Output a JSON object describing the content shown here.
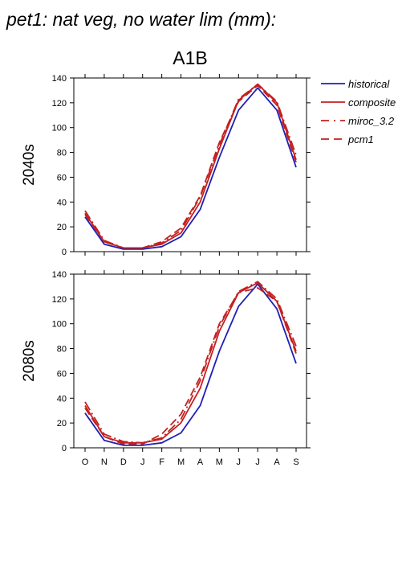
{
  "page": {
    "title": "pet1: nat veg, no water lim (mm):",
    "scenario": "A1B"
  },
  "colors": {
    "historical": "#1f1fb4",
    "composite": "#c42020",
    "miroc_3.2": "#c42020",
    "pcm1": "#c42020"
  },
  "legend": {
    "items": [
      {
        "label": "historical",
        "style": "solid-blue"
      },
      {
        "label": "composite",
        "style": "solid-red"
      },
      {
        "label": "miroc_3.2",
        "style": "dashdot-red"
      },
      {
        "label": "pcm1",
        "style": "dash-red"
      }
    ]
  },
  "chart_data": [
    {
      "type": "line",
      "row_label": "2040s",
      "categories": [
        "O",
        "N",
        "D",
        "J",
        "F",
        "M",
        "A",
        "M",
        "J",
        "J",
        "A",
        "S"
      ],
      "ylim": [
        0,
        140
      ],
      "yticks": [
        0,
        20,
        40,
        60,
        80,
        100,
        120,
        140
      ],
      "series": [
        {
          "name": "historical",
          "values": [
            28,
            6,
            2,
            2,
            4,
            12,
            34,
            76,
            114,
            132,
            114,
            68
          ]
        },
        {
          "name": "composite",
          "values": [
            31,
            8,
            3,
            3,
            6,
            15,
            40,
            83,
            122,
            135,
            120,
            74
          ]
        },
        {
          "name": "miroc_3.2",
          "values": [
            33,
            9,
            3,
            3,
            7,
            17,
            44,
            86,
            123,
            135,
            121,
            78
          ]
        },
        {
          "name": "pcm1",
          "values": [
            30,
            8,
            3,
            3,
            8,
            19,
            45,
            88,
            121,
            134,
            118,
            72
          ]
        }
      ]
    },
    {
      "type": "line",
      "row_label": "2080s",
      "categories": [
        "O",
        "N",
        "D",
        "J",
        "F",
        "M",
        "A",
        "M",
        "J",
        "J",
        "A",
        "S"
      ],
      "ylim": [
        0,
        140
      ],
      "yticks": [
        0,
        20,
        40,
        60,
        80,
        100,
        120,
        140
      ],
      "series": [
        {
          "name": "historical",
          "values": [
            28,
            6,
            2,
            2,
            4,
            12,
            34,
            78,
            114,
            132,
            112,
            68
          ]
        },
        {
          "name": "composite",
          "values": [
            34,
            9,
            4,
            4,
            7,
            20,
            48,
            94,
            125,
            133,
            118,
            78
          ]
        },
        {
          "name": "miroc_3.2",
          "values": [
            37,
            11,
            5,
            4,
            8,
            23,
            54,
            98,
            126,
            134,
            120,
            82
          ]
        },
        {
          "name": "pcm1",
          "values": [
            32,
            9,
            3,
            3,
            11,
            27,
            57,
            100,
            125,
            129,
            118,
            76
          ]
        }
      ]
    }
  ]
}
